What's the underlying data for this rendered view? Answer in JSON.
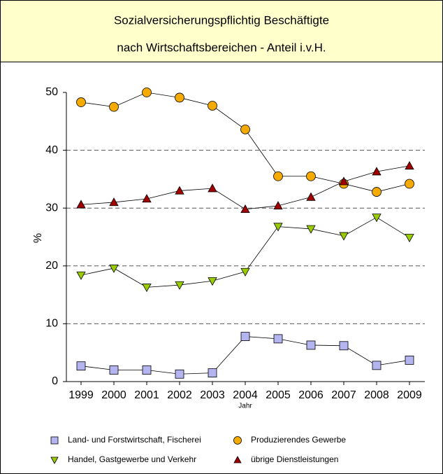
{
  "chart_data": {
    "type": "line",
    "title": [
      "Sozialversicherungspflichtig Beschäftigte",
      "nach Wirtschaftsbereichen - Anteil i.v.H."
    ],
    "xlabel": "Jahr",
    "ylabel": "%",
    "categories": [
      "1999",
      "2000",
      "2001",
      "2002",
      "2003",
      "2004",
      "2005",
      "2006",
      "2007",
      "2008",
      "2009"
    ],
    "series": [
      {
        "name": "Land- und Forstwirtschaft, Fischerei",
        "color": "#b4b4f0",
        "marker": "square",
        "values": [
          2.7,
          2.0,
          2.0,
          1.3,
          1.5,
          7.8,
          7.4,
          6.3,
          6.2,
          2.8,
          3.7
        ]
      },
      {
        "name": "Produzierendes Gewerbe",
        "color": "#f5aa00",
        "marker": "circle",
        "values": [
          48.3,
          47.5,
          50.0,
          49.1,
          47.7,
          43.6,
          35.5,
          35.5,
          34.2,
          32.8,
          34.2
        ]
      },
      {
        "name": "Handel, Gastgewerbe und Verkehr",
        "color": "#99cc00",
        "marker": "triangle-down",
        "values": [
          18.4,
          19.6,
          16.3,
          16.7,
          17.4,
          19.0,
          26.8,
          26.4,
          25.2,
          28.4,
          24.9
        ]
      },
      {
        "name": "übrige Dienstleistungen",
        "color": "#a00000",
        "marker": "triangle-up",
        "values": [
          30.6,
          31.0,
          31.6,
          33.0,
          33.4,
          29.8,
          30.4,
          31.9,
          34.6,
          36.3,
          37.3
        ]
      }
    ],
    "ylim": [
      0,
      50
    ],
    "yticks": [
      0,
      10,
      20,
      30,
      40,
      50
    ],
    "grid": true
  }
}
